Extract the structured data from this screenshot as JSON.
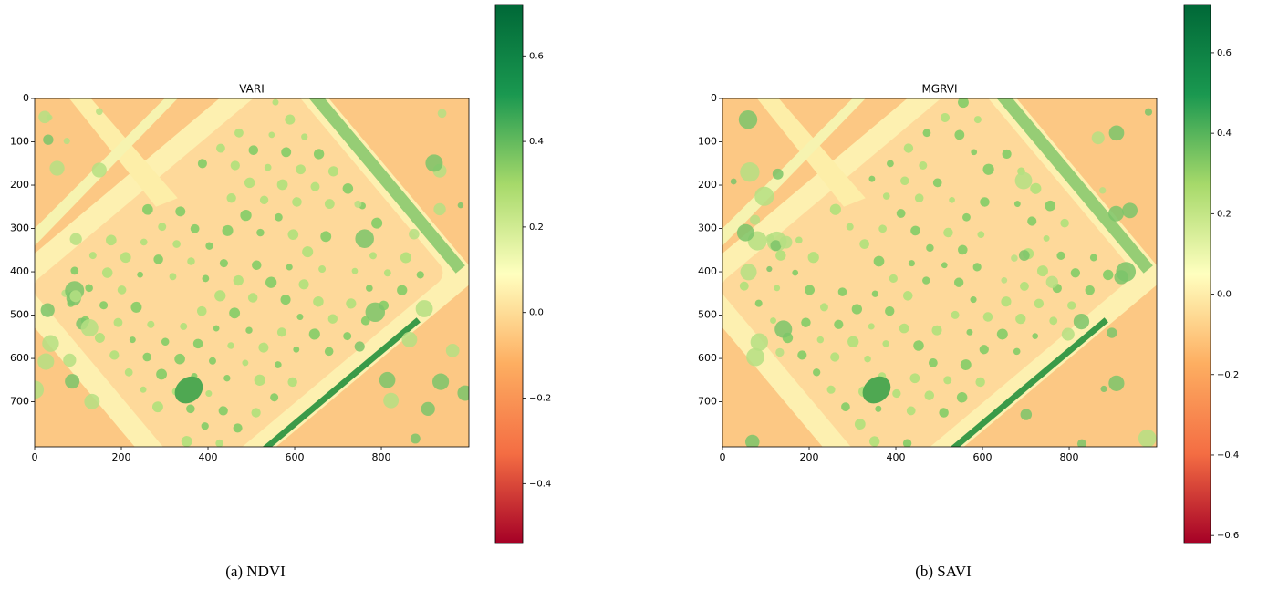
{
  "chart_data": [
    {
      "type": "image",
      "title": "VARI",
      "caption": "(a) NDVI",
      "xlim": [
        0,
        1002
      ],
      "ylim": [
        804,
        0
      ],
      "xticks": [
        0,
        200,
        400,
        600,
        800
      ],
      "yticks": [
        0,
        100,
        200,
        300,
        400,
        500,
        600,
        700
      ],
      "colorbar": {
        "lim": [
          -0.54,
          0.72
        ],
        "ticks": [
          {
            "value": -0.4,
            "label": "−0.4"
          },
          {
            "value": -0.2,
            "label": "−0.2"
          },
          {
            "value": 0,
            "label": "0.0"
          },
          0.2,
          0.4,
          0.6
        ],
        "colormap": [
          "#a50026",
          "#f46d43",
          "#fdae61",
          "#ffffbf",
          "#a6d96a",
          "#1a9850",
          "#006837"
        ]
      }
    },
    {
      "type": "image",
      "title": "MGRVI",
      "caption": "(b) SAVI",
      "xlim": [
        0,
        1002
      ],
      "ylim": [
        804,
        0
      ],
      "xticks": [
        0,
        200,
        400,
        600,
        800
      ],
      "yticks": [
        0,
        100,
        200,
        300,
        400,
        500,
        600,
        700
      ],
      "colorbar": {
        "lim": [
          -0.62,
          0.72
        ],
        "ticks": [
          {
            "value": -0.6,
            "label": "−0.6"
          },
          {
            "value": -0.4,
            "label": "−0.4"
          },
          {
            "value": -0.2,
            "label": "−0.2"
          },
          {
            "value": 0,
            "label": "0.0"
          },
          0.2,
          0.4,
          0.6
        ],
        "colormap": [
          "#a50026",
          "#f46d43",
          "#fdae61",
          "#ffffbf",
          "#a6d96a",
          "#1a9850",
          "#006837"
        ]
      }
    }
  ]
}
